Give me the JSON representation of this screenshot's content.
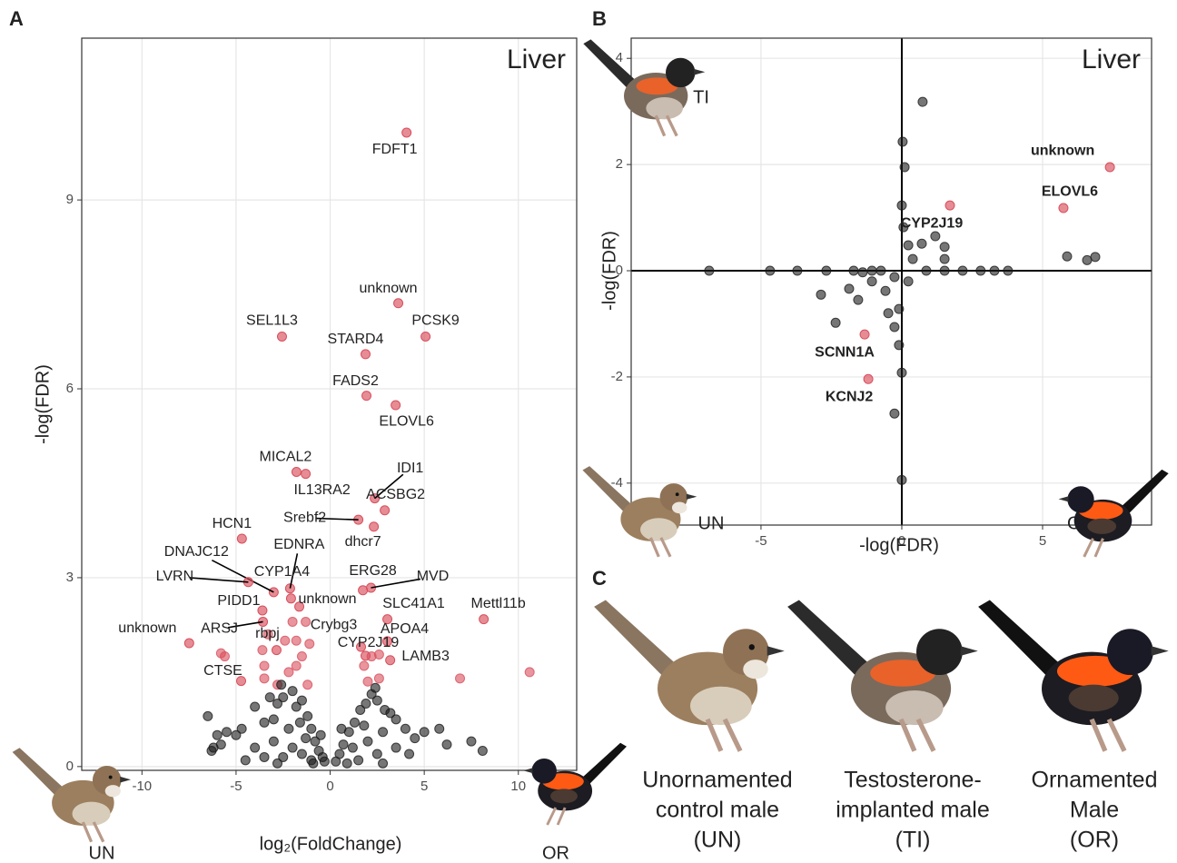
{
  "figure": {
    "panel_labels": [
      "A",
      "B",
      "C"
    ],
    "captions": [
      [
        "Unornamented",
        "control male",
        "(UN)"
      ],
      [
        "Testosterone-",
        "implanted male",
        "(TI)"
      ],
      [
        "Ornamented",
        "Male",
        "(OR)"
      ]
    ]
  },
  "chart_data": [
    {
      "type": "scatter",
      "title": "Liver",
      "x_label": "log₂(FoldChange)",
      "y_label": "-log(FDR)",
      "corner_labels": [
        "UN",
        "OR"
      ],
      "xlim": [
        -13.2,
        13.1
      ],
      "ylim": [
        -0.06,
        11.57
      ],
      "xticks": [
        -10,
        -5,
        0,
        5,
        10
      ],
      "yticks": [
        0,
        3,
        6,
        9
      ],
      "grid": true,
      "zero_lines": false,
      "series": [
        {
          "color": "#d94f5c",
          "x": [
            -5.8,
            -5.6,
            -3.6,
            -3.5,
            -3.5,
            -2.8,
            -2.2,
            -1.8,
            -1.5,
            -1.2,
            -1.8,
            -2.4,
            -1.3,
            -2.0,
            1.8,
            2.0,
            2.6,
            2.2,
            6.9,
            10.6,
            2.6,
            -3.3,
            -1.1
          ],
          "y": [
            1.8,
            1.75,
            1.85,
            1.6,
            1.4,
            1.3,
            1.5,
            1.6,
            1.75,
            1.3,
            2.0,
            2.0,
            2.3,
            2.3,
            1.6,
            1.35,
            1.4,
            1.75,
            1.4,
            1.5,
            1.78,
            2.1,
            1.95
          ]
        },
        {
          "color": "#1a1a1a",
          "x": [
            -6,
            -5.8,
            -6.2,
            -6.3,
            -5.5,
            -5.0,
            -4.7,
            -6.5,
            -4.0,
            -3.5,
            -3.2,
            -2.8,
            -2.5,
            -2.0,
            -1.8,
            -1.5,
            -1.2,
            -1.0,
            -0.8,
            -0.6,
            -0.4,
            -0.3,
            0.3,
            0.5,
            0.7,
            1.0,
            1.3,
            1.6,
            1.9,
            2.2,
            2.5,
            2.9,
            3.2,
            3.5,
            4.0,
            4.5,
            5.0,
            5.8,
            6.2,
            7.5,
            8.1,
            -4.0,
            -3.0,
            -2.0,
            -1.5,
            -1.0,
            -2.5,
            -3.5,
            1.5,
            2.5,
            3.5,
            2.0,
            1.2,
            -1.3,
            -2.2,
            -3.0,
            2.8,
            4.2,
            -4.5,
            -0.9,
            0.9,
            -2.8,
            2.8,
            -1.6,
            1.8,
            -2.6,
            2.4,
            -0.5,
            0.6
          ],
          "y": [
            0.5,
            0.35,
            0.3,
            0.25,
            0.55,
            0.5,
            0.6,
            0.8,
            0.95,
            0.7,
            1.1,
            1.0,
            1.1,
            1.2,
            0.95,
            1.05,
            0.8,
            0.6,
            0.4,
            0.25,
            0.15,
            0.08,
            0.08,
            0.2,
            0.35,
            0.55,
            0.7,
            0.9,
            1.0,
            1.15,
            1.05,
            0.9,
            0.85,
            0.75,
            0.6,
            0.45,
            0.55,
            0.6,
            0.35,
            0.4,
            0.25,
            0.3,
            0.4,
            0.3,
            0.2,
            0.1,
            0.15,
            0.15,
            0.1,
            0.2,
            0.3,
            0.4,
            0.3,
            0.45,
            0.6,
            0.75,
            0.55,
            0.2,
            0.1,
            0.05,
            0.05,
            0.05,
            0.05,
            0.7,
            0.65,
            1.3,
            1.25,
            0.5,
            0.6
          ]
        }
      ],
      "genes": [
        {
          "label": "FDFT1",
          "x": 4.06,
          "y": 10.07
        },
        {
          "label": "unknown",
          "x": 3.62,
          "y": 7.36
        },
        {
          "label": "PCSK9",
          "x": 5.07,
          "y": 6.83
        },
        {
          "label": "SEL1L3",
          "x": -2.56,
          "y": 6.83
        },
        {
          "label": "STARD4",
          "x": 1.88,
          "y": 6.55
        },
        {
          "label": "FADS2",
          "x": 1.93,
          "y": 5.89
        },
        {
          "label": "ELOVL6",
          "x": 3.48,
          "y": 5.74
        },
        {
          "label": "MICAL2",
          "x": -1.79,
          "y": 4.68
        },
        {
          "label": "IL13RA2",
          "x": -1.3,
          "y": 4.65
        },
        {
          "label": "IDI1",
          "x": 2.37,
          "y": 4.26
        },
        {
          "label": "ACSBG2",
          "x": 2.9,
          "y": 4.07
        },
        {
          "label": "Srebf2",
          "x": 1.5,
          "y": 3.92
        },
        {
          "label": "dhcr7",
          "x": 2.32,
          "y": 3.81
        },
        {
          "label": "HCN1",
          "x": -4.69,
          "y": 3.62
        },
        {
          "label": "DNAJC12",
          "x": -3.0,
          "y": 2.77
        },
        {
          "label": "EDNRA",
          "x": -2.13,
          "y": 2.83
        },
        {
          "label": "CYP1A4",
          "x": -2.08,
          "y": 2.67
        },
        {
          "label": "LVRN",
          "x": -4.35,
          "y": 2.93
        },
        {
          "label": "ERG28",
          "x": 1.74,
          "y": 2.8
        },
        {
          "label": "MVD",
          "x": 2.17,
          "y": 2.84
        },
        {
          "label": "unknown",
          "x": -1.64,
          "y": 2.54
        },
        {
          "label": "PIDD1",
          "x": -3.6,
          "y": 2.48
        },
        {
          "label": "SLC41A1",
          "x": 3.04,
          "y": 2.34
        },
        {
          "label": "Mettl11b",
          "x": 8.16,
          "y": 2.34
        },
        {
          "label": "unknown",
          "x": -7.49,
          "y": 1.96
        },
        {
          "label": "ARSJ",
          "x": -3.57,
          "y": 2.3
        },
        {
          "label": "rbpj",
          "x": -2.85,
          "y": 1.85
        },
        {
          "label": "Crybg3",
          "x": 1.64,
          "y": 1.9
        },
        {
          "label": "APOA4",
          "x": 3.04,
          "y": 1.99
        },
        {
          "label": "CYP2J19",
          "x": 1.88,
          "y": 1.76
        },
        {
          "label": "LAMB3",
          "x": 3.19,
          "y": 1.69
        },
        {
          "label": "CTSE",
          "x": -4.73,
          "y": 1.36
        }
      ],
      "gene_color": "#d94f5c"
    },
    {
      "type": "scatter",
      "title": "Liver",
      "x_label": "-log(FDR)",
      "y_label": "-log(FDR)",
      "corner_labels": [
        "UN",
        "OR",
        "TI"
      ],
      "xlim": [
        -9.61,
        8.87
      ],
      "ylim": [
        -4.79,
        4.38
      ],
      "xticks": [
        -5,
        0,
        5
      ],
      "yticks": [
        -4,
        -2,
        0,
        2,
        4
      ],
      "grid": true,
      "zero_lines": true,
      "series": [
        {
          "color": "#1a1a1a",
          "x": [
            0.74,
            0.03,
            0.1,
            0,
            5.87,
            6.58,
            6.87,
            -6.84,
            -4.68,
            -3.71,
            -2.35,
            -2.87,
            -0.26,
            0,
            0,
            3.77,
            1.52,
            1.19,
            0.71,
            -0.58,
            -1.06,
            -1.87,
            -1.55,
            -0.1,
            -0.26,
            -0.1,
            0.23,
            2.16,
            2.8,
            -2.68,
            -1.71,
            -1.06,
            -0.74,
            0.87,
            1.52,
            3.29,
            0.23,
            0.06,
            0.39,
            -0.26,
            -0.48,
            1.52,
            -1.39
          ],
          "y": [
            3.18,
            2.43,
            1.95,
            1.23,
            0.27,
            0.2,
            0.26,
            0,
            0,
            0,
            -0.98,
            -0.45,
            -2.69,
            -3.94,
            -1.92,
            0,
            0.45,
            0.65,
            0.51,
            -0.38,
            -0.2,
            -0.34,
            -0.55,
            -0.72,
            -1.06,
            -1.4,
            -0.2,
            0,
            0,
            0,
            0,
            0,
            0,
            0,
            0,
            0,
            0.48,
            0.82,
            0.22,
            -0.12,
            -0.8,
            0.22,
            -0.03
          ]
        }
      ],
      "genes": [
        {
          "label": "unknown",
          "x": 7.39,
          "y": 1.95
        },
        {
          "label": "ELOVL6",
          "x": 5.74,
          "y": 1.18
        },
        {
          "label": "CYP2J19",
          "x": 1.71,
          "y": 1.23
        },
        {
          "label": "SCNN1A",
          "x": -1.32,
          "y": -1.2
        },
        {
          "label": "KCNJ2",
          "x": -1.19,
          "y": -2.04
        }
      ],
      "gene_color": "#d94f5c",
      "gene_label_color": "#c33535"
    }
  ]
}
